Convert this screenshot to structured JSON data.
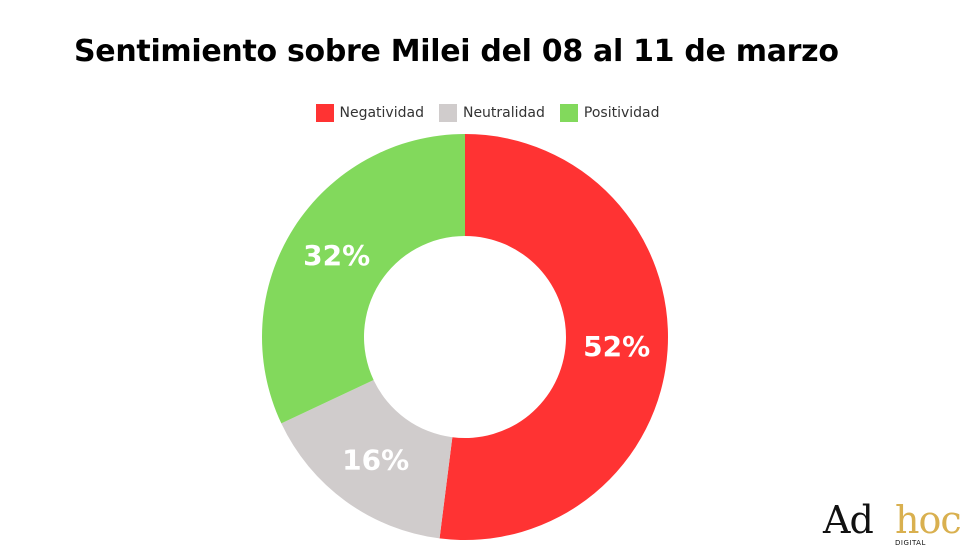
{
  "chart_data": {
    "type": "pie",
    "variant": "donut",
    "title": "Sentimiento sobre Milei del 08 al 11 de marzo",
    "legend_position": "top",
    "categories": [
      "Negatividad",
      "Neutralidad",
      "Positividad"
    ],
    "values": [
      52,
      16,
      32
    ],
    "value_labels": [
      "52%",
      "16%",
      "32%"
    ],
    "colors": [
      "#ff3333",
      "#d0cccc",
      "#82d95c"
    ]
  },
  "logo": {
    "word1": "Ad",
    "word2": "hoc",
    "subtitle": "DIGITAL"
  }
}
